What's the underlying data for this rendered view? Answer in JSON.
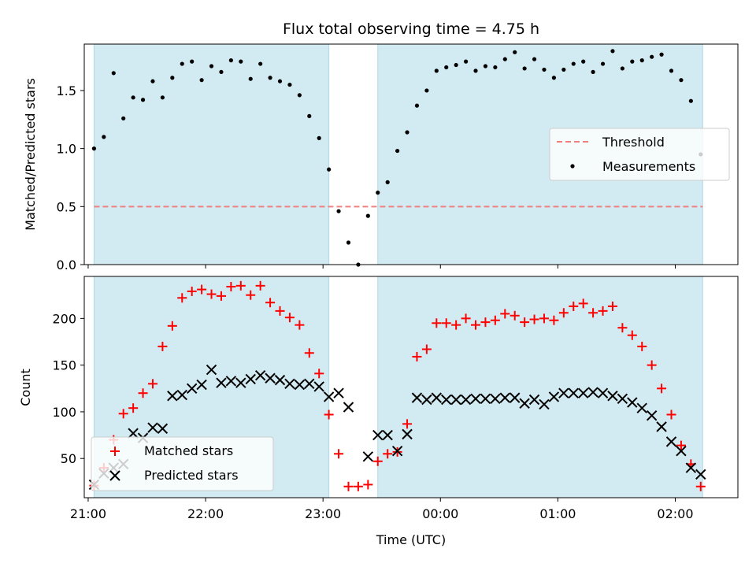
{
  "chart_data": {
    "title": "Flux total observing time = 4.75 h",
    "xlabel": "Time (UTC)",
    "x_tick_labels": [
      "21:00",
      "22:00",
      "23:00",
      "00:00",
      "01:00",
      "02:00"
    ],
    "x_range": [
      "20:58",
      "02:32"
    ],
    "shaded_intervals": [
      [
        "21:03",
        "23:03"
      ],
      [
        "23:28",
        "02:14"
      ]
    ],
    "shade_color": "#add8e6",
    "panels": [
      {
        "type": "scatter",
        "ylabel": "Matched/Predicted stars",
        "ylim": [
          0,
          1.9
        ],
        "y_ticks": [
          0.0,
          0.5,
          1.0,
          1.5
        ],
        "y_tick_labels": [
          "0.0",
          "0.5",
          "1.0",
          "1.5"
        ],
        "threshold": {
          "name": "Threshold",
          "value": 0.5,
          "color": "#f08080",
          "style": "dashed"
        },
        "series": [
          {
            "name": "Measurements",
            "marker": "dot",
            "color": "#000000",
            "x": [
              "21:03",
              "21:08",
              "21:13",
              "21:18",
              "21:23",
              "21:28",
              "21:33",
              "21:38",
              "21:43",
              "21:48",
              "21:53",
              "21:58",
              "22:03",
              "22:08",
              "22:13",
              "22:18",
              "22:23",
              "22:28",
              "22:33",
              "22:38",
              "22:43",
              "22:48",
              "22:53",
              "22:58",
              "23:03",
              "23:08",
              "23:13",
              "23:18",
              "23:23",
              "23:28",
              "23:33",
              "23:38",
              "23:43",
              "23:48",
              "23:53",
              "23:58",
              "00:03",
              "00:08",
              "00:13",
              "00:18",
              "00:23",
              "00:28",
              "00:33",
              "00:38",
              "00:43",
              "00:48",
              "00:53",
              "00:58",
              "01:03",
              "01:08",
              "01:13",
              "01:18",
              "01:23",
              "01:28",
              "01:33",
              "01:38",
              "01:43",
              "01:48",
              "01:53",
              "01:58",
              "02:03",
              "02:08",
              "02:13"
            ],
            "values": [
              1.0,
              1.1,
              1.65,
              1.26,
              1.44,
              1.42,
              1.58,
              1.44,
              1.61,
              1.73,
              1.75,
              1.59,
              1.71,
              1.66,
              1.76,
              1.75,
              1.6,
              1.73,
              1.61,
              1.58,
              1.55,
              1.46,
              1.28,
              1.09,
              0.82,
              0.46,
              0.19,
              0.0,
              0.42,
              0.62,
              0.71,
              0.98,
              1.14,
              1.37,
              1.5,
              1.67,
              1.7,
              1.72,
              1.75,
              1.67,
              1.71,
              1.7,
              1.77,
              1.83,
              1.69,
              1.77,
              1.68,
              1.61,
              1.68,
              1.73,
              1.75,
              1.66,
              1.73,
              1.84,
              1.69,
              1.75,
              1.76,
              1.79,
              1.81,
              1.67,
              1.59,
              1.41,
              0.95
            ]
          }
        ],
        "legend": [
          "Threshold",
          "Measurements"
        ],
        "legend_placement": "center-right"
      },
      {
        "type": "scatter",
        "ylabel": "Count",
        "ylim": [
          8,
          245
        ],
        "y_ticks": [
          50,
          100,
          150,
          200
        ],
        "y_tick_labels": [
          "50",
          "100",
          "150",
          "200"
        ],
        "series": [
          {
            "name": "Matched stars",
            "marker": "plus",
            "color": "#ff0000",
            "x": [
              "21:03",
              "21:08",
              "21:13",
              "21:18",
              "21:23",
              "21:28",
              "21:33",
              "21:38",
              "21:43",
              "21:48",
              "21:53",
              "21:58",
              "22:03",
              "22:08",
              "22:13",
              "22:18",
              "22:23",
              "22:28",
              "22:33",
              "22:38",
              "22:43",
              "22:48",
              "22:53",
              "22:58",
              "23:03",
              "23:08",
              "23:13",
              "23:18",
              "23:23",
              "23:28",
              "23:33",
              "23:38",
              "23:43",
              "23:48",
              "23:53",
              "23:58",
              "00:03",
              "00:08",
              "00:13",
              "00:18",
              "00:23",
              "00:28",
              "00:33",
              "00:38",
              "00:43",
              "00:48",
              "00:53",
              "00:58",
              "01:03",
              "01:08",
              "01:13",
              "01:18",
              "01:23",
              "01:28",
              "01:33",
              "01:38",
              "01:43",
              "01:48",
              "01:53",
              "01:58",
              "02:03",
              "02:08",
              "02:13"
            ],
            "values": [
              21,
              40,
              70,
              98,
              104,
              120,
              130,
              170,
              192,
              222,
              229,
              231,
              226,
              224,
              234,
              235,
              225,
              235,
              217,
              208,
              201,
              193,
              163,
              141,
              97,
              55,
              20,
              20,
              22,
              47,
              55,
              57,
              87,
              159,
              167,
              195,
              195,
              193,
              200,
              193,
              196,
              198,
              205,
              203,
              196,
              199,
              200,
              198,
              206,
              213,
              216,
              206,
              208,
              213,
              190,
              182,
              170,
              150,
              125,
              97,
              64,
              44,
              20
            ]
          },
          {
            "name": "Predicted stars",
            "marker": "x",
            "color": "#000000",
            "x": [
              "21:03",
              "21:08",
              "21:13",
              "21:18",
              "21:23",
              "21:28",
              "21:33",
              "21:38",
              "21:43",
              "21:48",
              "21:53",
              "21:58",
              "22:03",
              "22:08",
              "22:13",
              "22:18",
              "22:23",
              "22:28",
              "22:33",
              "22:38",
              "22:43",
              "22:48",
              "22:53",
              "22:58",
              "23:03",
              "23:08",
              "23:13",
              "23:18",
              "23:23",
              "23:28",
              "23:33",
              "23:38",
              "23:43",
              "23:48",
              "23:53",
              "23:58",
              "00:03",
              "00:08",
              "00:13",
              "00:18",
              "00:23",
              "00:28",
              "00:33",
              "00:38",
              "00:43",
              "00:48",
              "00:53",
              "00:58",
              "01:03",
              "01:08",
              "01:13",
              "01:18",
              "01:23",
              "01:28",
              "01:33",
              "01:38",
              "01:43",
              "01:48",
              "01:53",
              "01:58",
              "02:03",
              "02:08",
              "02:13"
            ],
            "values": [
              22,
              34,
              40,
              44,
              77,
              72,
              83,
              82,
              117,
              118,
              125,
              129,
              145,
              131,
              133,
              131,
              135,
              139,
              136,
              134,
              130,
              129,
              130,
              127,
              116,
              120,
              105,
              null,
              52,
              75,
              75,
              58,
              76,
              115,
              113,
              115,
              113,
              113,
              113,
              114,
              114,
              114,
              115,
              115,
              109,
              113,
              108,
              116,
              120,
              120,
              120,
              121,
              120,
              117,
              114,
              110,
              104,
              96,
              84,
              68,
              58,
              40,
              33
            ]
          }
        ],
        "legend": [
          "Matched stars",
          "Predicted stars"
        ],
        "legend_placement": "lower-left"
      }
    ]
  }
}
